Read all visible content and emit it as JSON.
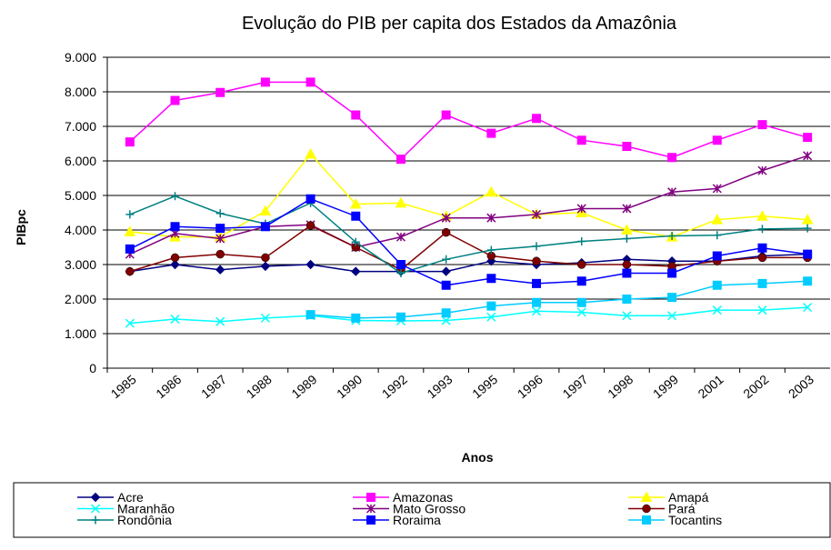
{
  "chart_data": {
    "type": "line",
    "title": "Evolução do PIB per capita dos Estados da Amazônia",
    "x_label": "Anos",
    "y_label": "PIBpc",
    "categories": [
      "1985",
      "1986",
      "1987",
      "1988",
      "1989",
      "1990",
      "1992",
      "1993",
      "1995",
      "1996",
      "1997",
      "1998",
      "1999",
      "2001",
      "2002",
      "2003"
    ],
    "ylim": [
      0,
      9000
    ],
    "yticks": [
      0,
      {
        "value": 1000,
        "label": "1.000"
      },
      {
        "value": 2000,
        "label": "2.000"
      },
      {
        "value": 3000,
        "label": "3.000"
      },
      {
        "value": 4000,
        "label": "4.000"
      },
      {
        "value": 5000,
        "label": "5.000"
      },
      {
        "value": 6000,
        "label": "6.000"
      },
      {
        "value": 7000,
        "label": "7.000"
      },
      {
        "value": 8000,
        "label": "8.000"
      },
      {
        "value": 9000,
        "label": "9.000"
      }
    ],
    "grid": true,
    "legend": "bottom",
    "series": [
      {
        "name": "Acre",
        "color": "#000080",
        "marker": "diamond",
        "values": [
          2800,
          3000,
          2850,
          2950,
          3000,
          2800,
          2800,
          2800,
          3100,
          3000,
          3050,
          3150,
          3100,
          3100,
          3250,
          3300
        ]
      },
      {
        "name": "Amazonas",
        "color": "#ff00ff",
        "marker": "square",
        "values": [
          6550,
          7750,
          7980,
          8280,
          8280,
          7330,
          6050,
          7330,
          6800,
          7230,
          6600,
          6420,
          6100,
          6600,
          7050,
          6680
        ]
      },
      {
        "name": "Amapá",
        "color": "#ffff00",
        "marker": "triangle",
        "values": [
          3950,
          3800,
          3800,
          4550,
          6200,
          4750,
          4780,
          4400,
          5100,
          4450,
          4500,
          4000,
          3800,
          4300,
          4400,
          4300
        ]
      },
      {
        "name": "Maranhão",
        "color": "#00ffff",
        "marker": "x",
        "values": [
          1300,
          1420,
          1350,
          1450,
          1520,
          1380,
          1370,
          1380,
          1480,
          1650,
          1620,
          1520,
          1520,
          1680,
          1680,
          1760
        ]
      },
      {
        "name": "Mato Grosso",
        "color": "#800080",
        "marker": "star",
        "values": [
          3300,
          3900,
          3750,
          4100,
          4150,
          3500,
          3800,
          4350,
          4350,
          4450,
          4620,
          4620,
          5100,
          5200,
          5720,
          6150
        ]
      },
      {
        "name": "Pará",
        "color": "#800000",
        "marker": "circle",
        "values": [
          2800,
          3200,
          3300,
          3200,
          4130,
          3500,
          2850,
          3930,
          3250,
          3100,
          3000,
          3000,
          2950,
          3100,
          3200,
          3200
        ]
      },
      {
        "name": "Rondônia",
        "color": "#008080",
        "marker": "plus",
        "values": [
          4450,
          4980,
          4480,
          4180,
          4780,
          3650,
          2750,
          3150,
          3420,
          3530,
          3670,
          3750,
          3830,
          3850,
          4030,
          4050
        ]
      },
      {
        "name": "Roraima",
        "color": "#0000ff",
        "marker": "square",
        "values": [
          3450,
          4100,
          4050,
          4100,
          4900,
          4400,
          3000,
          2400,
          2600,
          2450,
          2520,
          2750,
          2750,
          3250,
          3480,
          3300
        ]
      },
      {
        "name": "Tocantins",
        "color": "#00ccff",
        "marker": "square",
        "values": [
          null,
          null,
          null,
          null,
          1550,
          1450,
          1480,
          1600,
          1800,
          1900,
          1900,
          2000,
          2050,
          2400,
          2450,
          2520
        ]
      }
    ]
  }
}
